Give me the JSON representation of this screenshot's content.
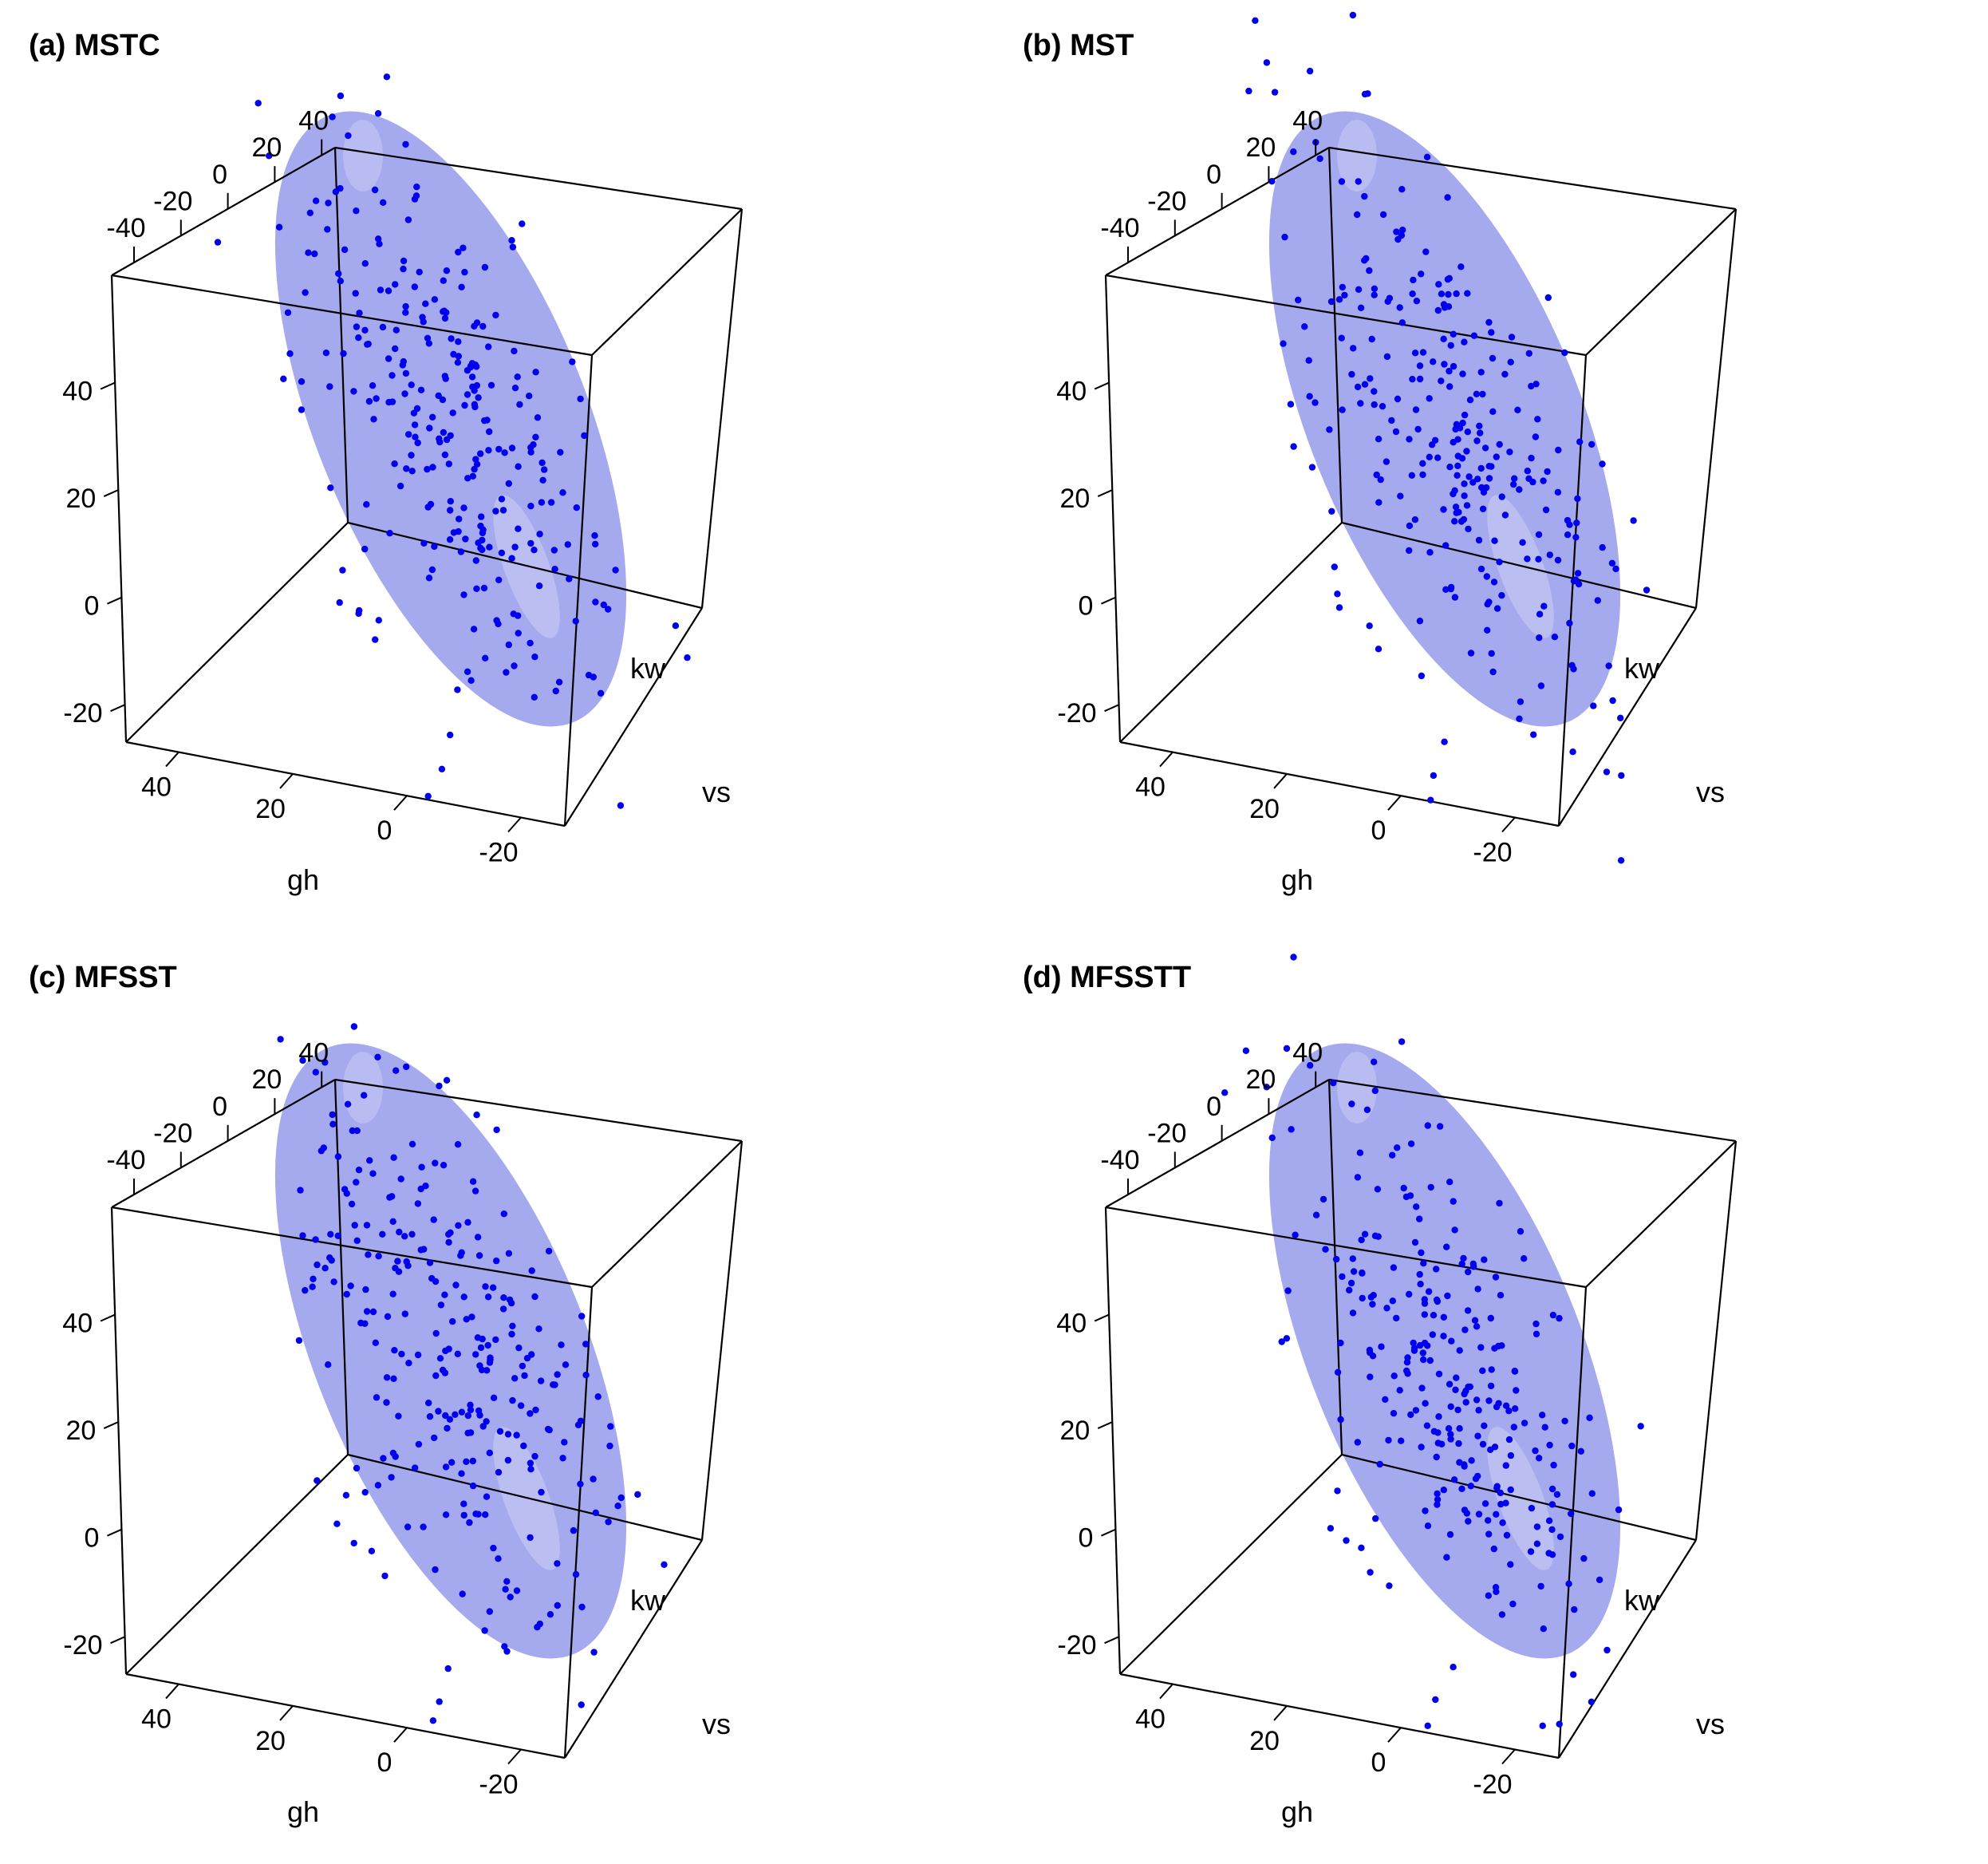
{
  "chart_data": [
    {
      "type": "scatter",
      "title": "(a) MSTC",
      "axes": {
        "x": {
          "label": "gh",
          "ticks": [
            "40",
            "20",
            "0",
            "-20"
          ]
        },
        "y": {
          "label": "",
          "ticks": [
            "-20",
            "0",
            "20",
            "40"
          ]
        },
        "z_top": {
          "label": "",
          "ticks": [
            "-40",
            "-20",
            "0",
            "20",
            "40"
          ]
        },
        "extra_labels": [
          "kw",
          "vs"
        ]
      },
      "surface": {
        "shape": "elongated ellipsoid",
        "color": "#7f84e6",
        "opacity": 0.7
      },
      "point_color": "#0000ee",
      "point_count": 260,
      "seed": 11
    },
    {
      "type": "scatter",
      "title": "(b) MST",
      "axes": {
        "x": {
          "label": "gh",
          "ticks": [
            "40",
            "20",
            "0",
            "-20"
          ]
        },
        "y": {
          "label": "",
          "ticks": [
            "-20",
            "0",
            "20",
            "40"
          ]
        },
        "z_top": {
          "label": "",
          "ticks": [
            "-40",
            "-20",
            "0",
            "20",
            "40"
          ]
        },
        "extra_labels": [
          "kw",
          "vs"
        ]
      },
      "surface": {
        "shape": "elongated ellipsoid",
        "color": "#7f84e6",
        "opacity": 0.7
      },
      "point_color": "#0000ee",
      "point_count": 260,
      "seed": 23
    },
    {
      "type": "scatter",
      "title": "(c) MFSST",
      "axes": {
        "x": {
          "label": "gh",
          "ticks": [
            "40",
            "20",
            "0",
            "-20"
          ]
        },
        "y": {
          "label": "",
          "ticks": [
            "-20",
            "0",
            "20",
            "40"
          ]
        },
        "z_top": {
          "label": "",
          "ticks": [
            "-40",
            "-20",
            "0",
            "20",
            "40"
          ]
        },
        "extra_labels": [
          "kw",
          "vs"
        ]
      },
      "surface": {
        "shape": "elongated ellipsoid",
        "color": "#7f84e6",
        "opacity": 0.7
      },
      "point_color": "#0000ee",
      "point_count": 260,
      "seed": 37
    },
    {
      "type": "scatter",
      "title": "(d) MFSSTT",
      "axes": {
        "x": {
          "label": "gh",
          "ticks": [
            "40",
            "20",
            "0",
            "-20"
          ]
        },
        "y": {
          "label": "",
          "ticks": [
            "-20",
            "0",
            "20",
            "40"
          ]
        },
        "z_top": {
          "label": "",
          "ticks": [
            "-40",
            "-20",
            "0",
            "20",
            "40"
          ]
        },
        "extra_labels": [
          "kw",
          "vs"
        ]
      },
      "surface": {
        "shape": "elongated ellipsoid",
        "color": "#7f84e6",
        "opacity": 0.7
      },
      "point_color": "#0000ee",
      "point_count": 260,
      "seed": 53
    }
  ]
}
